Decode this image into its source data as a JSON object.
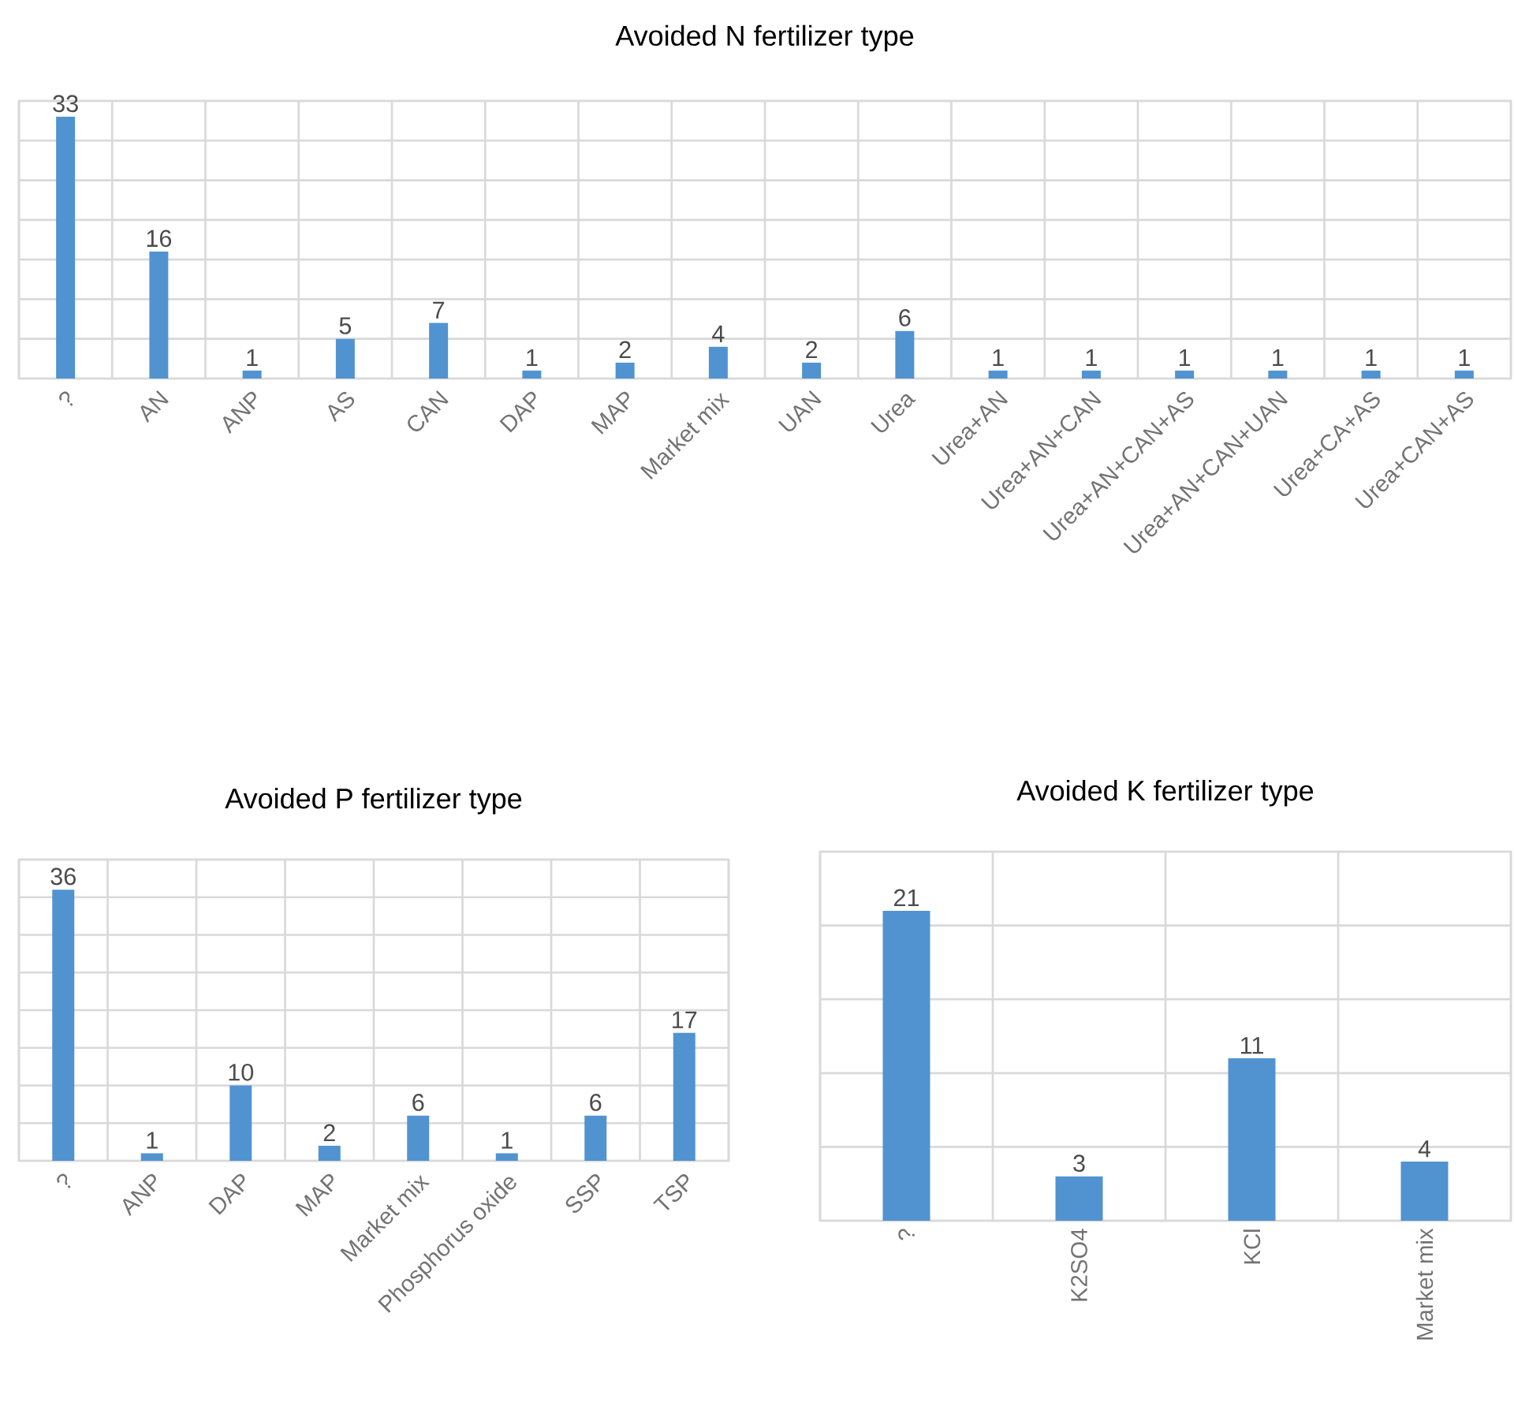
{
  "chart_data": [
    {
      "type": "bar",
      "title": "Avoided N fertilizer type",
      "categories": [
        "?",
        "AN",
        "ANP",
        "AS",
        "CAN",
        "DAP",
        "MAP",
        "Market mix",
        "UAN",
        "Urea",
        "Urea+AN",
        "Urea+AN+CAN",
        "Urea+AN+CAN+AS",
        "Urea+AN+CAN+UAN",
        "Urea+CA+AS",
        "Urea+CAN+AS"
      ],
      "values": [
        33,
        16,
        1,
        5,
        7,
        1,
        2,
        4,
        2,
        6,
        1,
        1,
        1,
        1,
        1,
        1
      ],
      "color": "#5193d0",
      "data_labels": true,
      "grid": true,
      "tick_labels": "x",
      "ylim": [
        0,
        35
      ],
      "yticks": [
        {
          "value": 0,
          "label": null
        },
        {
          "value": 5,
          "label": null
        },
        {
          "value": 10,
          "label": null
        },
        {
          "value": 15,
          "label": null
        },
        {
          "value": 20,
          "label": null
        },
        {
          "value": 25,
          "label": null
        },
        {
          "value": 30,
          "label": null
        },
        {
          "value": 35,
          "label": null
        }
      ]
    },
    {
      "type": "bar",
      "title": "Avoided P fertilizer type",
      "categories": [
        "?",
        "ANP",
        "DAP",
        "MAP",
        "Market mix",
        "Phosphorus oxide",
        "SSP",
        "TSP"
      ],
      "values": [
        36,
        1,
        10,
        2,
        6,
        1,
        6,
        17
      ],
      "color": "#5193d0",
      "data_labels": true,
      "grid": true,
      "tick_labels": "x",
      "ylim": [
        0,
        40
      ],
      "yticks": [
        {
          "value": 0,
          "label": null
        },
        {
          "value": 5,
          "label": null
        },
        {
          "value": 10,
          "label": null
        },
        {
          "value": 15,
          "label": null
        },
        {
          "value": 20,
          "label": null
        },
        {
          "value": 25,
          "label": null
        },
        {
          "value": 30,
          "label": null
        },
        {
          "value": 35,
          "label": null
        },
        {
          "value": 40,
          "label": null
        }
      ]
    },
    {
      "type": "bar",
      "title": "Avoided K fertilizer type",
      "categories": [
        "?",
        "K2SO4",
        "KCl",
        "Market mix"
      ],
      "values": [
        21,
        3,
        11,
        4
      ],
      "color": "#5193d0",
      "data_labels": true,
      "grid": true,
      "tick_labels": "x",
      "ylim": [
        0,
        25
      ],
      "yticks": [
        {
          "value": 0,
          "label": null
        },
        {
          "value": 5,
          "label": null
        },
        {
          "value": 10,
          "label": null
        },
        {
          "value": 15,
          "label": null
        },
        {
          "value": 20,
          "label": null
        },
        {
          "value": 25,
          "label": null
        }
      ]
    }
  ]
}
